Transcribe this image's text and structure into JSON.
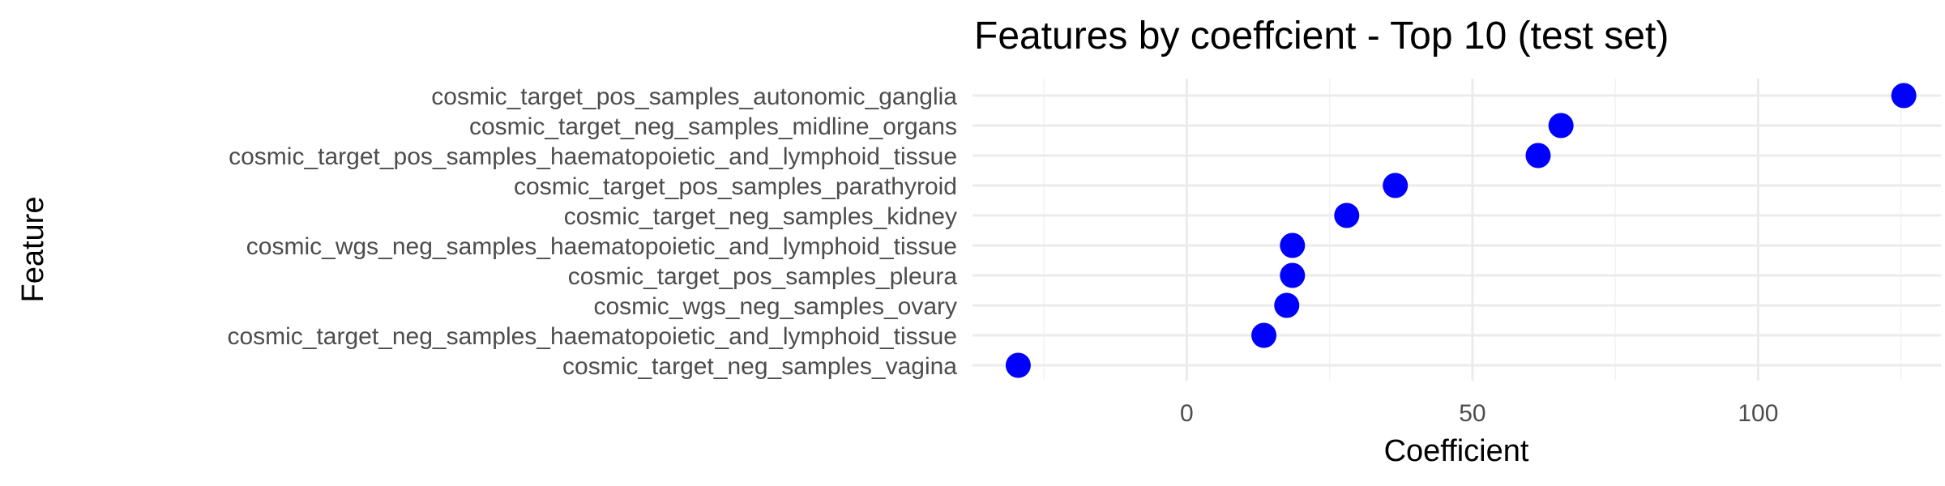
{
  "chart_data": {
    "type": "scatter",
    "title": "Features by coeffcient - Top 10 (test set)",
    "xlabel": "Coefficient",
    "ylabel": "Feature",
    "categories": [
      "cosmic_target_pos_samples_autonomic_ganglia",
      "cosmic_target_neg_samples_midline_organs",
      "cosmic_target_pos_samples_haematopoietic_and_lymphoid_tissue",
      "cosmic_target_pos_samples_parathyroid",
      "cosmic_target_neg_samples_kidney",
      "cosmic_wgs_neg_samples_haematopoietic_and_lymphoid_tissue",
      "cosmic_target_pos_samples_pleura",
      "cosmic_wgs_neg_samples_ovary",
      "cosmic_target_neg_samples_haematopoietic_and_lymphoid_tissue",
      "cosmic_target_neg_samples_vagina"
    ],
    "values": [
      125.5,
      65.5,
      61.5,
      36.5,
      28,
      18.5,
      18.5,
      17.5,
      13.5,
      -29.5
    ],
    "xlim": [
      -37.5,
      132
    ],
    "xticks": [
      0,
      50,
      100
    ],
    "xtick_labels": [
      "0",
      "50",
      "100"
    ],
    "point_color": "#0000ff",
    "grid": true
  }
}
